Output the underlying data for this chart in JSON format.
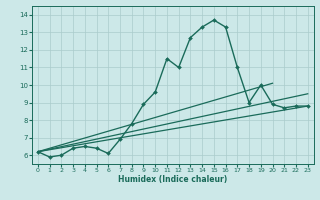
{
  "xlabel": "Humidex (Indice chaleur)",
  "background_color": "#cce8e8",
  "line_color": "#1a6b5a",
  "grid_color": "#aacccc",
  "xlim": [
    -0.5,
    23.5
  ],
  "ylim": [
    5.5,
    14.5
  ],
  "xticks": [
    0,
    1,
    2,
    3,
    4,
    5,
    6,
    7,
    8,
    9,
    10,
    11,
    12,
    13,
    14,
    15,
    16,
    17,
    18,
    19,
    20,
    21,
    22,
    23
  ],
  "yticks": [
    6,
    7,
    8,
    9,
    10,
    11,
    12,
    13,
    14
  ],
  "lines": [
    {
      "x": [
        0,
        1,
        2,
        3,
        4,
        5,
        6,
        7,
        8,
        9,
        10,
        11,
        12,
        13,
        14,
        15,
        16,
        17,
        18,
        19,
        20,
        21,
        22,
        23
      ],
      "y": [
        6.2,
        5.9,
        6.0,
        6.4,
        6.5,
        6.4,
        6.1,
        6.9,
        7.8,
        8.9,
        9.6,
        11.5,
        11.0,
        12.7,
        13.3,
        13.7,
        13.3,
        11.0,
        9.0,
        10.0,
        8.9,
        8.7,
        8.8,
        8.8
      ],
      "marker": "D",
      "markersize": 2.0,
      "linewidth": 1.0,
      "has_marker": true
    },
    {
      "x": [
        0,
        23
      ],
      "y": [
        6.2,
        8.8
      ],
      "marker": null,
      "markersize": 0,
      "linewidth": 0.9,
      "has_marker": false
    },
    {
      "x": [
        0,
        20
      ],
      "y": [
        6.2,
        10.1
      ],
      "marker": null,
      "markersize": 0,
      "linewidth": 0.9,
      "has_marker": false
    },
    {
      "x": [
        0,
        23
      ],
      "y": [
        6.2,
        9.5
      ],
      "marker": null,
      "markersize": 0,
      "linewidth": 0.9,
      "has_marker": false
    }
  ]
}
